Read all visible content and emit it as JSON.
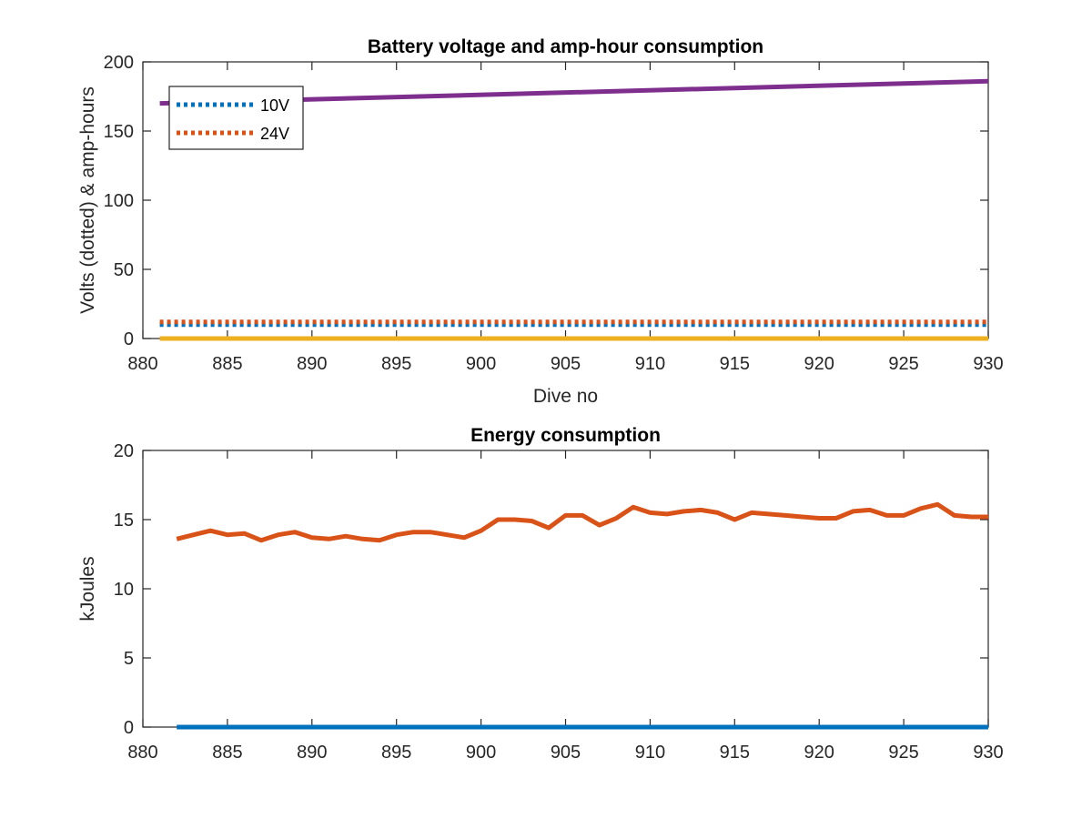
{
  "chart_data": [
    {
      "type": "line",
      "title": "Battery voltage and amp-hour consumption",
      "xlabel": "Dive no",
      "ylabel": "Volts (dotted) & amp-hours",
      "xlim": [
        880,
        930
      ],
      "ylim": [
        0,
        200
      ],
      "xticks": [
        880,
        885,
        890,
        895,
        900,
        905,
        910,
        915,
        920,
        925,
        930
      ],
      "yticks": [
        0,
        50,
        100,
        150,
        200
      ],
      "grid": false,
      "legend_position": "top-left",
      "series": [
        {
          "name": "10V",
          "color": "#0072BD",
          "style": "dotted",
          "x": [
            881,
            930
          ],
          "y": [
            10,
            10
          ]
        },
        {
          "name": "24V",
          "color": "#D95319",
          "style": "dotted",
          "x": [
            881,
            930
          ],
          "y": [
            12,
            12
          ]
        },
        {
          "color": "#7E2F8E",
          "style": "solid",
          "x": [
            881,
            930
          ],
          "y": [
            170,
            186
          ]
        },
        {
          "color": "#EDB120",
          "style": "solid",
          "x": [
            881,
            930
          ],
          "y": [
            0,
            0
          ]
        }
      ]
    },
    {
      "type": "line",
      "title": "Energy consumption",
      "xlabel": "",
      "ylabel": "kJoules",
      "xlim": [
        880,
        930
      ],
      "ylim": [
        0,
        20
      ],
      "xticks": [
        880,
        885,
        890,
        895,
        900,
        905,
        910,
        915,
        920,
        925,
        930
      ],
      "yticks": [
        0,
        5,
        10,
        15,
        20
      ],
      "grid": false,
      "series": [
        {
          "color": "#D95319",
          "style": "solid",
          "x": [
            882,
            883,
            884,
            885,
            886,
            887,
            888,
            889,
            890,
            891,
            892,
            893,
            894,
            895,
            896,
            897,
            898,
            899,
            900,
            901,
            902,
            903,
            904,
            905,
            906,
            907,
            908,
            909,
            910,
            911,
            912,
            913,
            914,
            915,
            916,
            917,
            918,
            919,
            920,
            921,
            922,
            923,
            924,
            925,
            926,
            927,
            928,
            929,
            930
          ],
          "y": [
            13.6,
            13.9,
            14.2,
            13.9,
            14.0,
            13.5,
            13.9,
            14.1,
            13.7,
            13.6,
            13.8,
            13.6,
            13.5,
            13.9,
            14.1,
            14.1,
            13.9,
            13.7,
            14.2,
            15.0,
            15.0,
            14.9,
            14.4,
            15.3,
            15.3,
            14.6,
            15.1,
            15.9,
            15.5,
            15.4,
            15.6,
            15.7,
            15.5,
            15.0,
            15.5,
            15.4,
            15.3,
            15.2,
            15.1,
            15.1,
            15.6,
            15.7,
            15.3,
            15.3,
            15.8,
            16.1,
            15.3,
            15.2,
            15.2
          ]
        },
        {
          "color": "#0072BD",
          "style": "solid",
          "x": [
            882,
            930
          ],
          "y": [
            0,
            0
          ]
        }
      ]
    }
  ]
}
